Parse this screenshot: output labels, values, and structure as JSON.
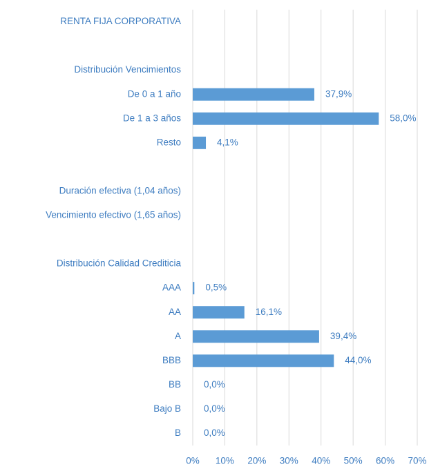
{
  "chart_data": {
    "type": "barh",
    "categories": [
      "RENTA FIJA CORPORATIVA",
      null,
      "Distribución Vencimientos",
      "De 0 a 1 año",
      "De 1 a 3 años",
      "Resto",
      null,
      "Duración efectiva (1,04 años)",
      "Vencimiento efectivo (1,65 años)",
      null,
      "Distribución Calidad Crediticia",
      "AAA",
      "AA",
      "A",
      "BBB",
      "BB",
      "Bajo B",
      "B"
    ],
    "values": [
      null,
      null,
      null,
      37.9,
      58.0,
      4.1,
      null,
      null,
      null,
      null,
      null,
      0.5,
      16.1,
      39.4,
      44.0,
      0.0,
      0.0,
      0.0
    ],
    "value_labels": [
      null,
      null,
      null,
      "37,9%",
      "58,0%",
      "4,1%",
      null,
      null,
      null,
      null,
      null,
      "0,5%",
      "16,1%",
      "39,4%",
      "44,0%",
      "0,0%",
      "0,0%",
      "0,0%"
    ],
    "color": "#5b9bd5",
    "xlim": [
      0,
      70
    ],
    "xticks": [
      {
        "value": 0,
        "label": "0%"
      },
      {
        "value": 10,
        "label": "10%"
      },
      {
        "value": 20,
        "label": "20%"
      },
      {
        "value": 30,
        "label": "30%"
      },
      {
        "value": 40,
        "label": "40%"
      },
      {
        "value": 50,
        "label": "50%"
      },
      {
        "value": 60,
        "label": "60%"
      },
      {
        "value": 70,
        "label": "70%"
      }
    ],
    "grid": true
  }
}
